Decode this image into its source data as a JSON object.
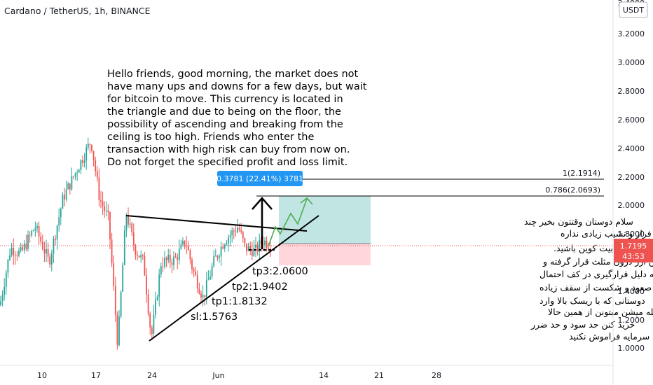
{
  "header": {
    "symbol_title": "Cardano / TetherUS, 1h, BINANCE",
    "currency_badge": "USDT"
  },
  "price_tag": {
    "price": "1.7195",
    "countdown": "43:53"
  },
  "measure_label": "0.3781 (22.41%) 3781",
  "fib_levels": [
    "1(2.1914)",
    "0.786(2.0693)"
  ],
  "note_en": [
    "Hello friends, good morning, the market does not",
    "have many ups and downs for a few days, but wait",
    " for bitcoin to move. This currency is located in",
    "the triangle and due to being on the floor, the",
    "possibility of ascending and breaking from the",
    "ceiling is too high. Friends who enter the",
    "transaction with high risk can buy from now on.",
    "Do not forget the specified profit and loss limit."
  ],
  "note_fa": [
    "سلام دوستان وقتتون بخیر چند",
    "روزیه بازار فراز و نشیب زیادی نداره",
    "ولی منتظر حرکت بیت کوین باشید.",
    "این ارز درون مثلث قرار گرفته و",
    "به دلیل قرارگیری در کف احتمال",
    "صعود و شکست از سقف زیاده",
    "دوستانی که با ریسک بالا وارد",
    "معامله میشن میتونن از همین حالا",
    "خرید کنن حد سود و حد ضرر",
    "مشخص شده مدیریت سرمایه فراموش نکنید"
  ],
  "levels": [
    "tp3:2.0600",
    "tp2:1.9402",
    "tp1:1.8132",
    "sl:1.5763"
  ],
  "colors": {
    "up": "#26a69a",
    "down": "#ef5350",
    "price_tag": "#ef5350",
    "measure": "#2196f3",
    "arrow_green": "#4caf50",
    "profit_zone": "#b2dfdb",
    "loss_zone": "#ffcdd2"
  },
  "chart_data": {
    "type": "candlestick",
    "title": "Cardano / TetherUS, 1h, BINANCE",
    "y_ticks": [
      "3.2000",
      "3.0000",
      "2.8000",
      "2.6000",
      "2.4000",
      "2.2000",
      "2.0000",
      "1.8000",
      "1.4000",
      "1.2000",
      "1.0000"
    ],
    "y_top_partial": "3.4000",
    "x_ticks": [
      "10",
      "17",
      "24",
      "Jun",
      "14",
      "21",
      "28"
    ],
    "ylim": [
      0.94,
      3.45
    ],
    "path_points": [
      [
        0,
        1.3
      ],
      [
        15,
        1.7
      ],
      [
        30,
        1.66
      ],
      [
        50,
        1.85
      ],
      [
        70,
        1.6
      ],
      [
        90,
        2.05
      ],
      [
        110,
        2.25
      ],
      [
        130,
        2.45
      ],
      [
        142,
        2.05
      ],
      [
        155,
        1.9
      ],
      [
        168,
        1.02
      ],
      [
        180,
        1.95
      ],
      [
        192,
        1.7
      ],
      [
        205,
        1.6
      ],
      [
        216,
        1.07
      ],
      [
        230,
        1.6
      ],
      [
        250,
        1.62
      ],
      [
        265,
        1.75
      ],
      [
        275,
        1.55
      ],
      [
        290,
        1.35
      ],
      [
        305,
        1.6
      ],
      [
        320,
        1.75
      ],
      [
        340,
        1.85
      ],
      [
        350,
        1.7
      ],
      [
        365,
        1.68
      ],
      [
        375,
        1.75
      ],
      [
        388,
        1.72
      ]
    ],
    "series": [
      {
        "name": "current_price",
        "value": 1.7195
      }
    ],
    "grid": false
  }
}
